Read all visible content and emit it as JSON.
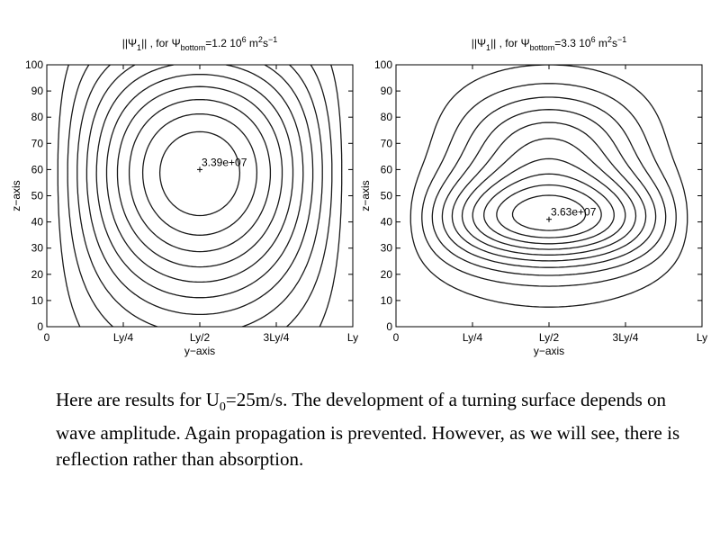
{
  "charts": [
    {
      "title_prefix": "||Ψ",
      "title_sub1": "1",
      "title_mid": "|| , for Ψ",
      "title_sub2": "bottom",
      "title_mid2": "=1.2 10",
      "title_sup1": "6",
      "title_unit": " m",
      "title_sup2": "2",
      "title_unit2": "s",
      "title_sup3": "−1",
      "xlabel": "y−axis",
      "ylabel": "z−axis",
      "xticks": [
        "0",
        "Ly/4",
        "Ly/2",
        "3Ly/4",
        "Ly"
      ],
      "yticks": [
        "0",
        "10",
        "20",
        "30",
        "40",
        "50",
        "60",
        "70",
        "80",
        "90",
        "100"
      ],
      "peak_label": "3.39e+07"
    },
    {
      "title_prefix": "||Ψ",
      "title_sub1": "1",
      "title_mid": "|| , for Ψ",
      "title_sub2": "bottom",
      "title_mid2": "=3.3 10",
      "title_sup1": "6",
      "title_unit": " m",
      "title_sup2": "2",
      "title_unit2": "s",
      "title_sup3": "−1",
      "xlabel": "y−axis",
      "ylabel": "z−axis",
      "xticks": [
        "0",
        "Ly/4",
        "Ly/2",
        "3Ly/4",
        "Ly"
      ],
      "yticks": [
        "0",
        "10",
        "20",
        "30",
        "40",
        "50",
        "60",
        "70",
        "80",
        "90",
        "100"
      ],
      "peak_label": "3.63e+07"
    }
  ],
  "chart_data": [
    {
      "type": "contour",
      "xlabel": "y−axis",
      "ylabel": "z−axis",
      "xlim": [
        0,
        1
      ],
      "ylim": [
        0,
        100
      ],
      "x_tick_labels": [
        "0",
        "Ly/4",
        "Ly/2",
        "3Ly/4",
        "Ly"
      ],
      "y_ticks": [
        0,
        10,
        20,
        30,
        40,
        50,
        60,
        70,
        80,
        90,
        100
      ],
      "maximum": {
        "y": 0.5,
        "z": 60,
        "label": "3.39e+07"
      },
      "grid": false
    },
    {
      "type": "contour",
      "xlabel": "y−axis",
      "ylabel": "z−axis",
      "xlim": [
        0,
        1
      ],
      "ylim": [
        0,
        100
      ],
      "x_tick_labels": [
        "0",
        "Ly/4",
        "Ly/2",
        "3Ly/4",
        "Ly"
      ],
      "y_ticks": [
        0,
        10,
        20,
        30,
        40,
        50,
        60,
        70,
        80,
        90,
        100
      ],
      "maximum": {
        "y": 0.5,
        "z": 41,
        "label": "3.63e+07"
      },
      "grid": false
    }
  ],
  "caption": {
    "part1": "Here are results for U",
    "sub": "0",
    "part2": "=25m/s.  The development of a turning surface depends on wave amplitude.  Again propagation is prevented.  However, as we will see, there is reflection rather than absorption."
  }
}
